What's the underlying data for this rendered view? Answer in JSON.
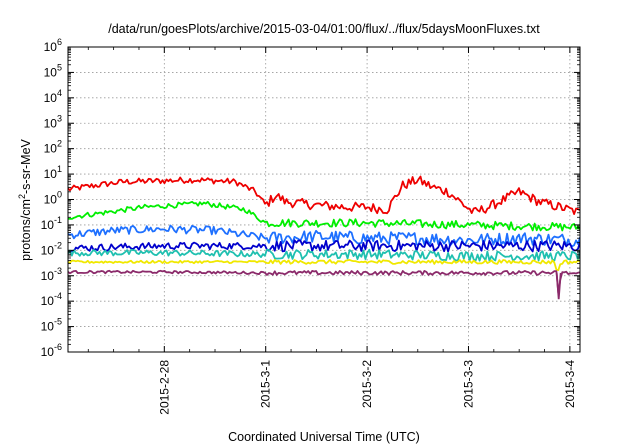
{
  "chart_data": {
    "type": "line",
    "title": "/data/run/goesPlots/archive/2015-03-04/01:00/flux/../flux/5daysMoonFluxes.txt",
    "xlabel": "Coordinated Universal Time (UTC)",
    "ylabel_parts": {
      "pre": "protons/cm",
      "sup": "2",
      "post": "-s-sr-MeV"
    },
    "y_scale": "log",
    "ylim": [
      1e-06,
      1000000
    ],
    "y_tick_labels": [
      {
        "base": "10",
        "exp": "-6"
      },
      {
        "base": "10",
        "exp": "-5"
      },
      {
        "base": "10",
        "exp": "-4"
      },
      {
        "base": "10",
        "exp": "-3"
      },
      {
        "base": "10",
        "exp": "-2"
      },
      {
        "base": "10",
        "exp": "-1"
      },
      {
        "base": "10",
        "exp": "0"
      },
      {
        "base": "10",
        "exp": "1"
      },
      {
        "base": "10",
        "exp": "2"
      },
      {
        "base": "10",
        "exp": "3"
      },
      {
        "base": "10",
        "exp": "4"
      },
      {
        "base": "10",
        "exp": "5"
      },
      {
        "base": "10",
        "exp": "6"
      }
    ],
    "x_unit": "days",
    "xlim": [
      -1.95,
      3.1
    ],
    "x_ticks": [
      {
        "value": -1,
        "label": "2015-2-28"
      },
      {
        "value": 0,
        "label": "2015-3-1"
      },
      {
        "value": 1,
        "label": "2015-3-2"
      },
      {
        "value": 2,
        "label": "2015-3-3"
      },
      {
        "value": 3,
        "label": "2015-3-4"
      }
    ],
    "grid": true,
    "legend": "none",
    "series": [
      {
        "color": "#ee0000",
        "values": [
          [
            -1.95,
            2.5
          ],
          [
            -1.7,
            3.5
          ],
          [
            -1.4,
            5
          ],
          [
            -1.0,
            5.5
          ],
          [
            -0.7,
            6
          ],
          [
            -0.3,
            5
          ],
          [
            -0.1,
            2
          ],
          [
            0.0,
            0.6
          ],
          [
            0.1,
            1.5
          ],
          [
            0.2,
            0.8
          ],
          [
            0.5,
            0.6
          ],
          [
            0.8,
            0.5
          ],
          [
            1.0,
            0.5
          ],
          [
            1.2,
            0.4
          ],
          [
            1.35,
            3.5
          ],
          [
            1.5,
            6
          ],
          [
            1.65,
            3
          ],
          [
            1.8,
            2
          ],
          [
            2.05,
            0.3
          ],
          [
            2.2,
            0.5
          ],
          [
            2.5,
            2
          ],
          [
            2.7,
            0.8
          ],
          [
            2.9,
            0.5
          ],
          [
            3.1,
            0.3
          ]
        ]
      },
      {
        "color": "#00ee00",
        "values": [
          [
            -1.95,
            0.2
          ],
          [
            -1.6,
            0.3
          ],
          [
            -1.2,
            0.5
          ],
          [
            -0.6,
            0.7
          ],
          [
            -0.2,
            0.4
          ],
          [
            0.0,
            0.12
          ],
          [
            0.3,
            0.12
          ],
          [
            1.0,
            0.12
          ],
          [
            2.0,
            0.1
          ],
          [
            3.1,
            0.08
          ]
        ]
      },
      {
        "color": "#1e70ff",
        "values": [
          [
            -1.95,
            0.04
          ],
          [
            -1.5,
            0.06
          ],
          [
            -1.0,
            0.07
          ],
          [
            -0.5,
            0.06
          ],
          [
            0.0,
            0.03
          ],
          [
            0.5,
            0.035
          ],
          [
            1.0,
            0.03
          ],
          [
            1.5,
            0.03
          ],
          [
            2.0,
            0.025
          ],
          [
            2.5,
            0.03
          ],
          [
            3.1,
            0.025
          ]
        ]
      },
      {
        "color": "#0000cc",
        "values": [
          [
            -1.95,
            0.012
          ],
          [
            -1.0,
            0.015
          ],
          [
            0.0,
            0.015
          ],
          [
            1.0,
            0.015
          ],
          [
            2.0,
            0.015
          ],
          [
            3.1,
            0.015
          ]
        ]
      },
      {
        "color": "#20c0b0",
        "values": [
          [
            -1.95,
            0.008
          ],
          [
            -1.0,
            0.008
          ],
          [
            0.0,
            0.007
          ],
          [
            1.0,
            0.007
          ],
          [
            2.0,
            0.006
          ],
          [
            3.1,
            0.006
          ]
        ]
      },
      {
        "color": "#f0e800",
        "values": [
          [
            -1.95,
            0.0035
          ],
          [
            0.0,
            0.0035
          ],
          [
            1.0,
            0.0035
          ],
          [
            2.0,
            0.0035
          ],
          [
            2.85,
            0.0035
          ],
          [
            2.88,
            0.0012
          ],
          [
            2.91,
            0.0035
          ],
          [
            3.1,
            0.0035
          ]
        ]
      },
      {
        "color": "#8b2a6a",
        "values": [
          [
            -1.95,
            0.0014
          ],
          [
            -1.0,
            0.0014
          ],
          [
            0.0,
            0.0013
          ],
          [
            1.0,
            0.0013
          ],
          [
            2.0,
            0.0013
          ],
          [
            2.87,
            0.0013
          ],
          [
            2.89,
            0.00012
          ],
          [
            2.91,
            0.0013
          ],
          [
            3.1,
            0.0012
          ]
        ]
      }
    ]
  }
}
